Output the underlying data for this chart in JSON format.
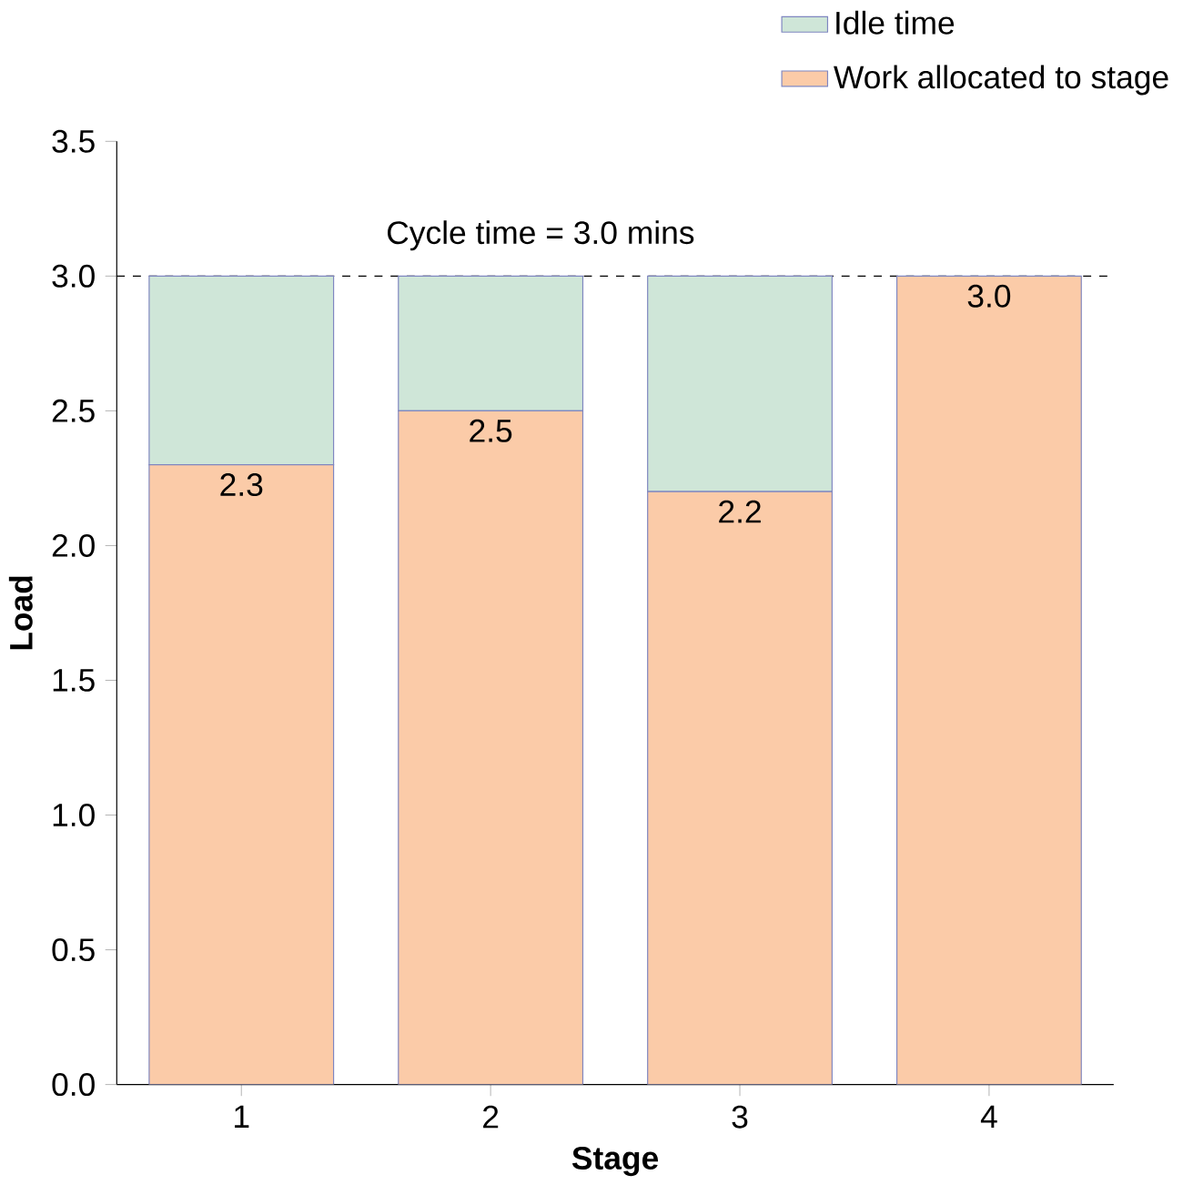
{
  "chart_data": {
    "type": "bar",
    "stacked": true,
    "xlabel": "Stage",
    "ylabel": "Load",
    "categories": [
      "1",
      "2",
      "3",
      "4"
    ],
    "series": [
      {
        "name": "Work allocated to stage",
        "color": "#fbcba8",
        "values": [
          2.3,
          2.5,
          2.2,
          3.0
        ],
        "value_labels": [
          "2.3",
          "2.5",
          "2.2",
          "3.0"
        ]
      },
      {
        "name": "Idle time",
        "color": "#cfe6d8",
        "values": [
          0.7,
          0.5,
          0.8,
          0.0
        ]
      }
    ],
    "ylim": [
      0,
      3.5
    ],
    "yticks": [
      {
        "value": 0,
        "label": "0.0"
      },
      {
        "value": 0.5,
        "label": "0.5"
      },
      {
        "value": 1,
        "label": "1.0"
      },
      {
        "value": 1.5,
        "label": "1.5"
      },
      {
        "value": 2,
        "label": "2.0"
      },
      {
        "value": 2.5,
        "label": "2.5"
      },
      {
        "value": 3,
        "label": "3.0"
      },
      {
        "value": 3.5,
        "label": "3.5"
      }
    ],
    "ref_lines": [
      {
        "axis": "y",
        "value": 3.0,
        "label": "Cycle time = 3.0 mins",
        "color": "#000000",
        "line_style": "dashed"
      }
    ],
    "legend": "top right",
    "grid": false
  }
}
